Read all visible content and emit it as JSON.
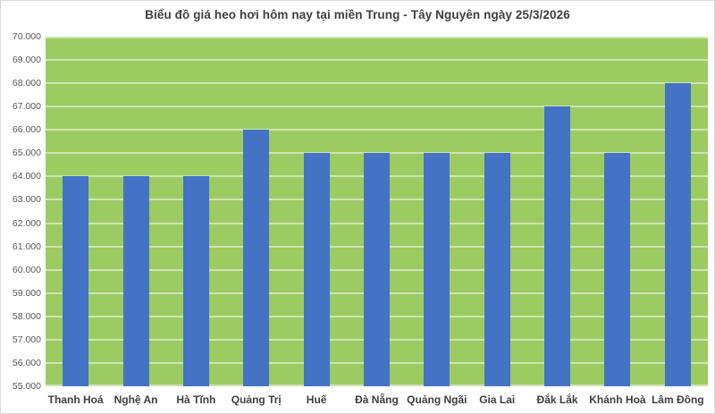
{
  "chart_data": {
    "type": "bar",
    "title": "Biểu đồ giá heo hơi hôm nay tại miền Trung - Tây Nguyên ngày 25/3/2026",
    "categories": [
      "Thanh Hoá",
      "Nghệ An",
      "Hà Tĩnh",
      "Quảng Trị",
      "Huế",
      "Đà Nẵng",
      "Quảng Ngãi",
      "Gia Lai",
      "Đắk Lắk",
      "Khánh Hoà",
      "Lâm Đồng"
    ],
    "values": [
      64000,
      64000,
      64000,
      66000,
      65000,
      65000,
      65000,
      65000,
      67000,
      65000,
      68000
    ],
    "xlabel": "",
    "ylabel": "",
    "ylim": [
      55000,
      70000
    ],
    "ytick_step": 1000,
    "ytick_labels_top_to_bottom": [
      "70.000",
      "69.000",
      "68.000",
      "67.000",
      "66.000",
      "65.000",
      "64.000",
      "63.000",
      "62.000",
      "61.000",
      "60.000",
      "59.000",
      "58.000",
      "57.000",
      "56.000",
      "55.000"
    ],
    "grid": "horizontal",
    "legend": "none",
    "colors": {
      "bar": "#4472c4",
      "plot_background": "#9ccb62",
      "gridline": "#cfe3b2",
      "title_text": "#3f3f3f",
      "y_axis_text": "#595959",
      "x_axis_text": "#3f3f3f",
      "border": "#d9d9d9",
      "background": "#ffffff"
    }
  }
}
